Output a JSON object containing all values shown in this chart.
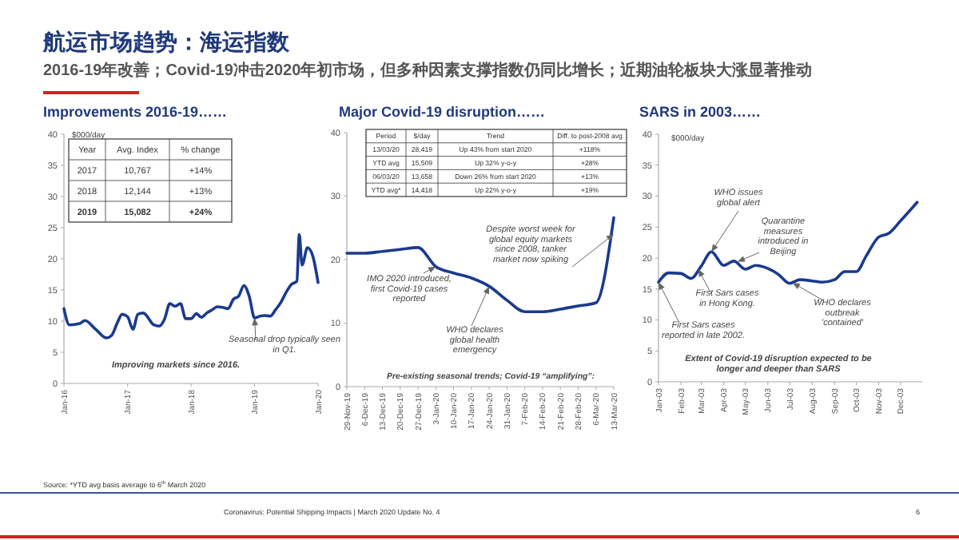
{
  "chart_data": [
    {
      "type": "other",
      "title": "航运市场趋势：海运指数",
      "subtitle": "2016-19年改善；Covid-19冲击2020年初市场，但多种因素支撑指数仍同比增长；近期油轮板块大涨显著推动",
      "annotations": [
        "Source: *YTD avg basis average to 6$^{th}$ March 2020",
        "Coronavirus: Potential Shipping Impacts | March 2020 Update No. 4",
        "6"
      ]
    },
    {
      "type": "line",
      "title": "Improvements 2016-19……",
      "ylabel": "$000/day",
      "x": [
        "2016-01-01",
        "2016-02-01",
        "2016-04-01",
        "2016-05-01",
        "2016-07-01",
        "2016-09-01",
        "2016-10-01",
        "2016-11-01",
        "2016-12-01",
        "2017-01-01",
        "2017-02-01",
        "2017-03-01",
        "2017-04-01",
        "2017-06-01",
        "2017-07-01",
        "2017-08-01",
        "2017-09-01",
        "2017-10-01",
        "2017-11-01",
        "2017-12-01",
        "2018-01-01",
        "2018-02-01",
        "2018-03-01",
        "2018-04-01",
        "2018-05-01",
        "2018-06-01",
        "2018-07-01",
        "2018-08-01",
        "2018-09-01",
        "2018-10-01",
        "2018-11-01",
        "2018-12-01",
        "2019-01-01",
        "2019-02-01",
        "2019-03-01",
        "2019-04-01",
        "2019-05-01",
        "2019-06-01",
        "2019-07-01",
        "2019-08-01",
        "2019-09-01",
        "2019-09-15",
        "2019-10-01",
        "2019-11-01",
        "2019-12-01",
        "2020-01-01"
      ],
      "series": [
        {
          "color": "#1a3a8c",
          "values": [
            12.0,
            9.4,
            9.6,
            10.1,
            8.7,
            7.3,
            7.7,
            9.6,
            11.1,
            10.7,
            8.7,
            11.1,
            11.3,
            9.4,
            9.2,
            10.3,
            12.8,
            12.4,
            12.8,
            10.4,
            10.4,
            11.2,
            10.6,
            11.3,
            11.8,
            12.3,
            12.2,
            12.0,
            13.5,
            14.0,
            15.7,
            14.0,
            10.5,
            10.8,
            10.9,
            10.8,
            11.8,
            13.0,
            14.6,
            15.9,
            16.4,
            23.9,
            19.0,
            21.8,
            20.5,
            16.2
          ]
        }
      ],
      "xlim": [
        "2016-01-01",
        "2020-01-01"
      ],
      "xticks": [
        {
          "value": "2016-01-01",
          "label": "Jan-16"
        },
        {
          "value": "2017-01-01",
          "label": "Jan-17"
        },
        {
          "value": "2018-01-01",
          "label": "Jan-18"
        },
        {
          "value": "2019-01-01",
          "label": "Jan-19"
        },
        {
          "value": "2020-01-01",
          "label": "Jan-20"
        }
      ],
      "ylim": [
        0,
        40
      ],
      "yticks": [
        0,
        5,
        10,
        15,
        20,
        25,
        30,
        35,
        40
      ],
      "line_style": "solid",
      "annotations": [
        "Year",
        "Avg. Index",
        "% change",
        "2017",
        "10,767",
        "+14%",
        "2018",
        "12,144",
        "+13%",
        "2019",
        "15,082",
        "+24%",
        {
          "text": "Seasonal drop typically seen in Q1.",
          "x": "2019-01-01",
          "y": 10.5
        },
        "Improving markets since 2016."
      ]
    },
    {
      "type": "line",
      "title": "Major Covid-19 disruption……",
      "categories": [
        "29-Nov-19",
        "6-Dec-19",
        "13-Dec-19",
        "20-Dec-19",
        "27-Dec-19",
        "3-Jan-20",
        "10-Jan-20",
        "17-Jan-20",
        "24-Jan-20",
        "31-Jan-20",
        "7-Feb-20",
        "14-Feb-20",
        "21-Feb-20",
        "28-Feb-20",
        "6-Mar-20",
        "13-Mar-20"
      ],
      "series": [
        {
          "color": "#1a3a8c",
          "values": [
            21.0,
            21.0,
            21.3,
            21.6,
            21.9,
            18.9,
            17.9,
            17.1,
            15.8,
            13.6,
            11.8,
            11.8,
            12.2,
            12.7,
            13.2,
            26.6
          ]
        }
      ],
      "ylim": [
        0,
        40
      ],
      "yticks": [
        0,
        10,
        20,
        30,
        40
      ],
      "line_style": "solid",
      "annotations": [
        "Period",
        "$/day",
        "Trend",
        "Diff. to post-2008 avg",
        "13/03/20",
        "28,419",
        "Up 43% from start 2020",
        "+118%",
        "YTD avg",
        "15,509",
        "Up 32% y-o-y",
        "+28%",
        "06/03/20",
        "13,658",
        "Down 26% from start 2020",
        "+13%",
        "YTD avg*",
        "14,418",
        "Up 22% y-o-y",
        "+19%",
        {
          "text": "IMO 2020 introduced, first Covid-19 cases reported",
          "x": "3-Jan-20",
          "y": 18.9
        },
        {
          "text": "WHO declares global health emergency",
          "x": "24-Jan-20",
          "y": 15.8
        },
        {
          "text": "Despite worst week for global equity markets since 2008, tanker market now spiking",
          "x": "13-Mar-20",
          "y": 24
        },
        "Pre-existing seasonal trends; Covid-19 “amplifying”:"
      ]
    },
    {
      "type": "line",
      "title": "SARS in 2003……",
      "ylabel": "$000/day",
      "x": [
        "2003-01-01",
        "2003-01-15",
        "2003-02-01",
        "2003-02-15",
        "2003-03-01",
        "2003-03-15",
        "2003-04-01",
        "2003-04-15",
        "2003-05-01",
        "2003-05-15",
        "2003-06-01",
        "2003-06-15",
        "2003-07-01",
        "2003-07-15",
        "2003-08-01",
        "2003-08-15",
        "2003-09-01",
        "2003-09-15",
        "2003-10-01",
        "2003-10-15",
        "2003-11-01",
        "2003-11-15",
        "2003-12-01",
        "2003-12-24"
      ],
      "series": [
        {
          "color": "#1a3a8c",
          "values": [
            16.1,
            17.6,
            17.5,
            16.7,
            18.7,
            21.0,
            18.8,
            19.5,
            18.2,
            18.8,
            18.3,
            17.4,
            15.9,
            16.5,
            16.3,
            16.1,
            16.5,
            17.8,
            17.8,
            20.4,
            23.4,
            24.0,
            26.0,
            29.0
          ]
        }
      ],
      "xlim": [
        "2003-01-01",
        "2003-12-31"
      ],
      "xticks": [
        {
          "value": "2003-01-01",
          "label": "Jan-03"
        },
        {
          "value": "2003-02-01",
          "label": "Feb-03"
        },
        {
          "value": "2003-03-01",
          "label": "Mar-03"
        },
        {
          "value": "2003-04-01",
          "label": "Apr-03"
        },
        {
          "value": "2003-05-01",
          "label": "May-03"
        },
        {
          "value": "2003-06-01",
          "label": "Jun-03"
        },
        {
          "value": "2003-07-01",
          "label": "Jul-03"
        },
        {
          "value": "2003-08-01",
          "label": "Aug-03"
        },
        {
          "value": "2003-09-01",
          "label": "Sep-03"
        },
        {
          "value": "2003-10-01",
          "label": "Oct-03"
        },
        {
          "value": "2003-11-01",
          "label": "Nov-03"
        },
        {
          "value": "2003-12-01",
          "label": "Dec-03"
        }
      ],
      "ylim": [
        0,
        40
      ],
      "yticks": [
        0,
        5,
        10,
        15,
        20,
        25,
        30,
        35,
        40
      ],
      "line_style": "solid",
      "annotations": [
        {
          "text": "WHO issues global alert",
          "x": "2003-03-15",
          "y": 21.0
        },
        {
          "text": "Quarantine measures introduced in Beijing",
          "x": "2003-04-20",
          "y": 19.4
        },
        {
          "text": "First Sars cases in Hong Kong.",
          "x": "2003-02-25",
          "y": 18.2
        },
        {
          "text": "First Sars cases reported in late 2002.",
          "x": "2003-01-01",
          "y": 16.1
        },
        {
          "text": "WHO declares outbreak 'contained'",
          "x": "2003-07-05",
          "y": 16.0
        },
        "Extent of Covid-19 disruption expected to be longer and deeper than SARS"
      ]
    }
  ]
}
